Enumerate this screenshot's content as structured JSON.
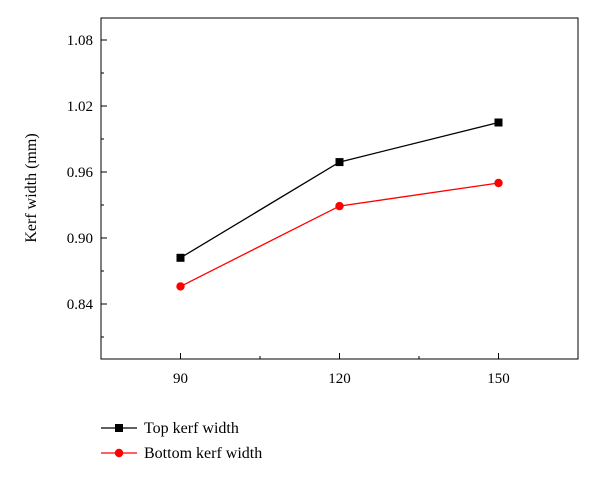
{
  "chart_data": {
    "type": "line",
    "title": "",
    "xlabel": "",
    "ylabel": "Kerf width (mm)",
    "x": [
      90,
      120,
      150
    ],
    "x_tick_labels": [
      "90",
      "120",
      "150"
    ],
    "xlim": [
      75,
      165
    ],
    "ylim": [
      0.79,
      1.1
    ],
    "y_ticks": [
      0.84,
      0.9,
      0.96,
      1.02,
      1.08
    ],
    "y_tick_labels": [
      "0.84",
      "0.90",
      "0.96",
      "1.02",
      "1.08"
    ],
    "grid": false,
    "legend_position": "bottom-left, below plot",
    "series": [
      {
        "name": "Top kerf width",
        "values": [
          0.882,
          0.969,
          1.005
        ],
        "color": "#000000",
        "marker": "square"
      },
      {
        "name": "Bottom kerf width",
        "values": [
          0.856,
          0.929,
          0.95
        ],
        "color": "#ff0000",
        "marker": "circle"
      }
    ]
  }
}
